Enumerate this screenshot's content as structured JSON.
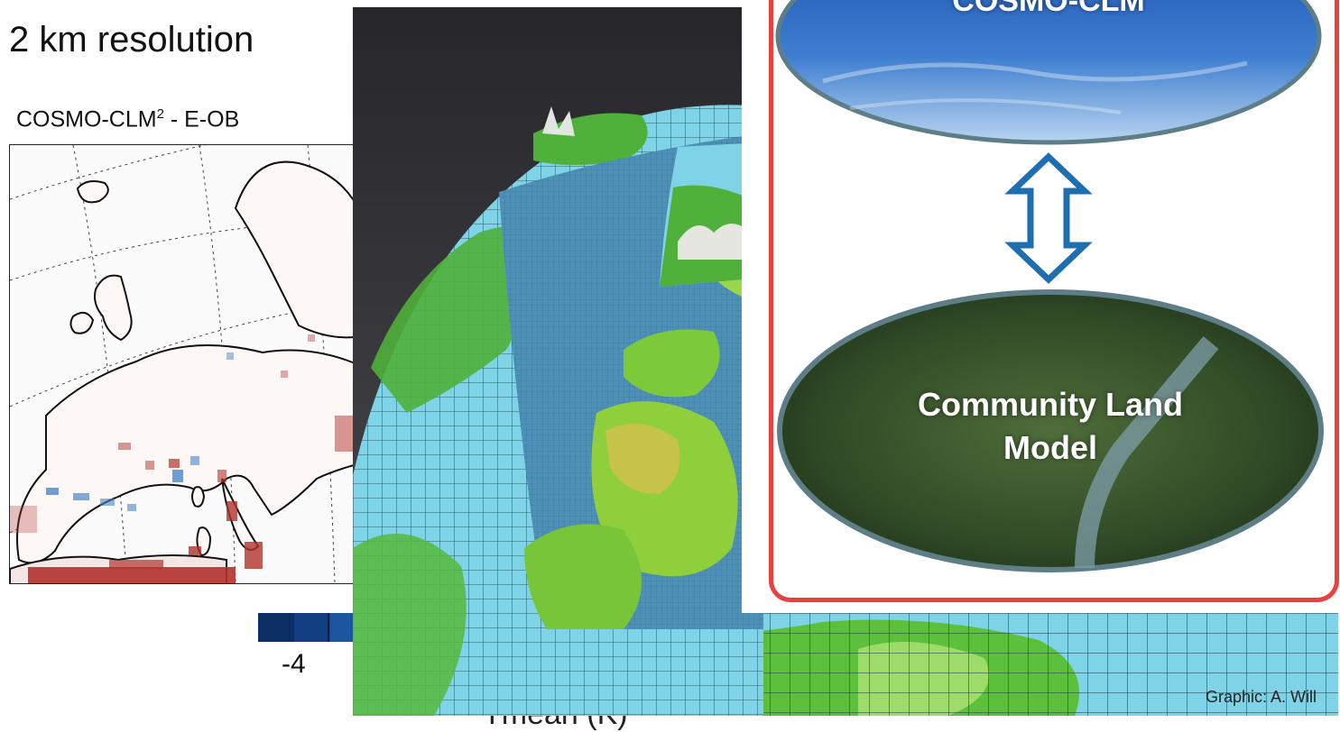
{
  "slide": {
    "resolution_heading": "2 km resolution",
    "map_title_prefix": "COSMO-CLM",
    "map_title_sup": "2",
    "map_title_suffix": " - E-OB",
    "colorbar_tick": "-4",
    "axis_label_partial": "Tmean (K)",
    "graphic_credit": "Graphic: A. Will"
  },
  "coupling": {
    "atmosphere_label": "COSMO-CLM",
    "land_label_line1": "Community Land",
    "land_label_line2": "Model",
    "frame_color": "#e8413e",
    "arrow_color": "#1f6fb0"
  },
  "colors": {
    "warm_bias": "#b2322c",
    "cold_bias": "#4a86c5",
    "ocean_grid": "#7fd3e6",
    "land_green": "#5cc03c"
  }
}
